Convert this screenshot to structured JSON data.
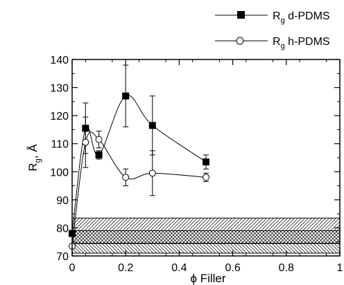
{
  "chart_data": {
    "type": "line",
    "xlabel": "ϕ Filler",
    "ylabel": {
      "main": "R",
      "sub": "g",
      "rest": ", Å"
    },
    "xlim": [
      0,
      1
    ],
    "ylim": [
      70,
      140
    ],
    "xticks": [
      {
        "v": 0,
        "label": "0"
      },
      {
        "v": 0.2,
        "label": "0.2"
      },
      {
        "v": 0.4,
        "label": "0.4"
      },
      {
        "v": 0.6,
        "label": "0.6"
      },
      {
        "v": 0.8,
        "label": "0.8"
      },
      {
        "v": 1,
        "label": "1"
      }
    ],
    "yticks": [
      {
        "v": 70,
        "label": "70"
      },
      {
        "v": 80,
        "label": "80"
      },
      {
        "v": 90,
        "label": "90"
      },
      {
        "v": 100,
        "label": "100"
      },
      {
        "v": 110,
        "label": "110"
      },
      {
        "v": 120,
        "label": "120"
      },
      {
        "v": 130,
        "label": "130"
      },
      {
        "v": 140,
        "label": "140"
      }
    ],
    "grid": false,
    "legend_position": "top-right, outside plot",
    "series": [
      {
        "name": {
          "main": "R",
          "sub": "g",
          "rest": " d-PDMS"
        },
        "marker": "filled-square",
        "color": "#000000",
        "points": [
          {
            "x": 0.0,
            "y": 78,
            "err": 0
          },
          {
            "x": 0.05,
            "y": 115.5,
            "err": 9
          },
          {
            "x": 0.1,
            "y": 106,
            "err": 1.5
          },
          {
            "x": 0.2,
            "y": 127,
            "err": 11
          },
          {
            "x": 0.3,
            "y": 116.5,
            "err": 10.5
          },
          {
            "x": 0.5,
            "y": 103.5,
            "err": 2.5
          }
        ]
      },
      {
        "name": {
          "main": "R",
          "sub": "g",
          "rest": " h-PDMS"
        },
        "marker": "open-circle",
        "color": "#000000",
        "points": [
          {
            "x": 0.0,
            "y": 73.5,
            "err": 0
          },
          {
            "x": 0.05,
            "y": 110.5,
            "err": 9
          },
          {
            "x": 0.1,
            "y": 111.5,
            "err": 3
          },
          {
            "x": 0.2,
            "y": 98,
            "err": 3
          },
          {
            "x": 0.3,
            "y": 99.5,
            "err": 8
          },
          {
            "x": 0.5,
            "y": 98,
            "err": 1.5
          }
        ]
      }
    ],
    "bands": [
      {
        "y0": 74.5,
        "y1": 83.5,
        "hatch": "forward-diagonal"
      },
      {
        "y0": 71,
        "y1": 79,
        "hatch": "backward-diagonal"
      }
    ],
    "hlines": [
      74.5
    ]
  }
}
